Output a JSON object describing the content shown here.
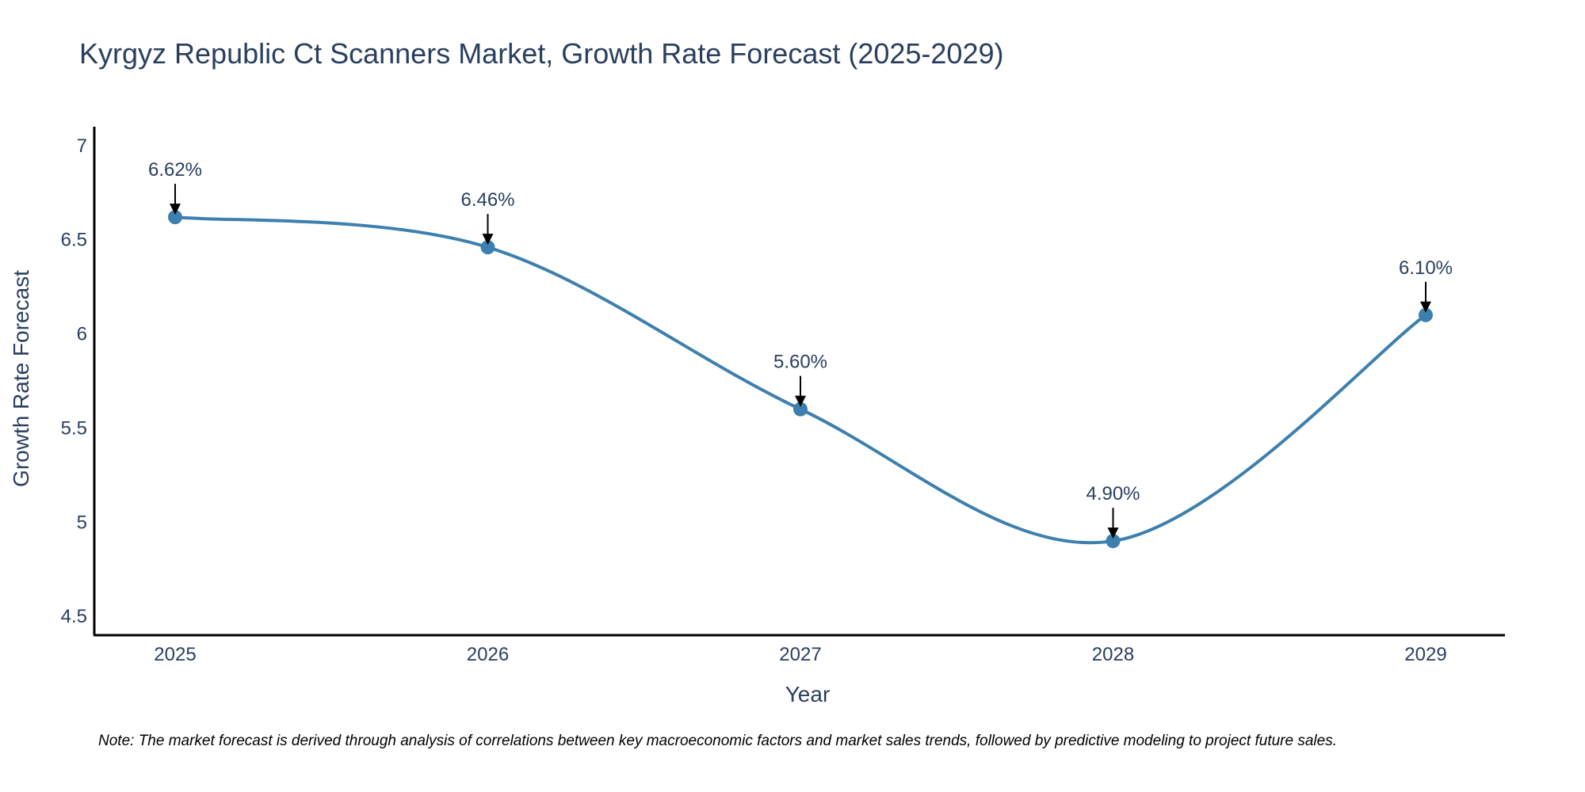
{
  "chart_data": {
    "type": "line",
    "title": "Kyrgyz Republic Ct Scanners Market, Growth Rate Forecast (2025-2029)",
    "xlabel": "Year",
    "ylabel": "Growth Rate Forecast",
    "categories": [
      "2025",
      "2026",
      "2027",
      "2028",
      "2029"
    ],
    "series": [
      {
        "name": "Growth Rate Forecast",
        "values": [
          6.62,
          6.46,
          5.6,
          4.9,
          6.1
        ],
        "labels": [
          "6.62%",
          "6.46%",
          "5.60%",
          "4.90%",
          "6.10%"
        ]
      }
    ],
    "ylim": [
      4.4,
      7.1
    ],
    "yticks": [
      4.5,
      5,
      5.5,
      6,
      6.5,
      7
    ],
    "ytick_labels": [
      "4.5",
      "5",
      "5.5",
      "6",
      "6.5",
      "7"
    ],
    "line_color": "#3d7fae",
    "marker_color": "#3d7fae",
    "arrow_color": "#000000",
    "grid": false
  },
  "note": "Note: The market forecast is derived through analysis of correlations between key macroeconomic factors and market sales trends, followed by predictive modeling to project future sales."
}
